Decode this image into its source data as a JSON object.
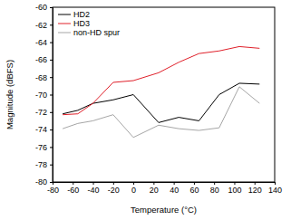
{
  "chart_data": {
    "type": "line",
    "x_label": "Temperature (°C)",
    "y_label": "Magnitude (dBFS)",
    "x": [
      -70,
      -55,
      -40,
      -20,
      0,
      25,
      45,
      65,
      85,
      105,
      125
    ],
    "series": [
      {
        "name": "HD2",
        "color": "#000000",
        "values": [
          -72.2,
          -71.8,
          -71.0,
          -70.6,
          -70.0,
          -73.2,
          -72.6,
          -73.0,
          -70.0,
          -68.7,
          -68.8
        ]
      },
      {
        "name": "HD3",
        "color": "#e0202a",
        "values": [
          -72.3,
          -72.2,
          -71.0,
          -68.6,
          -68.4,
          -67.5,
          -66.3,
          -65.3,
          -65.0,
          -64.5,
          -64.7
        ]
      },
      {
        "name": "non-HD spur",
        "color": "#a6a6a6",
        "values": [
          -73.9,
          -73.3,
          -73.0,
          -72.3,
          -74.9,
          -73.5,
          -73.9,
          -74.1,
          -73.8,
          -69.1,
          -71.0
        ]
      }
    ],
    "xlim": [
      -80,
      140
    ],
    "xticks": [
      -80,
      -60,
      -40,
      -20,
      0,
      20,
      40,
      60,
      80,
      100,
      120,
      140
    ],
    "ylim": [
      -80,
      -60
    ],
    "yticks": [
      -80,
      -78,
      -76,
      -74,
      -72,
      -70,
      -68,
      -66,
      -64,
      -62,
      -60
    ],
    "grid": false,
    "legend": "upper left"
  }
}
